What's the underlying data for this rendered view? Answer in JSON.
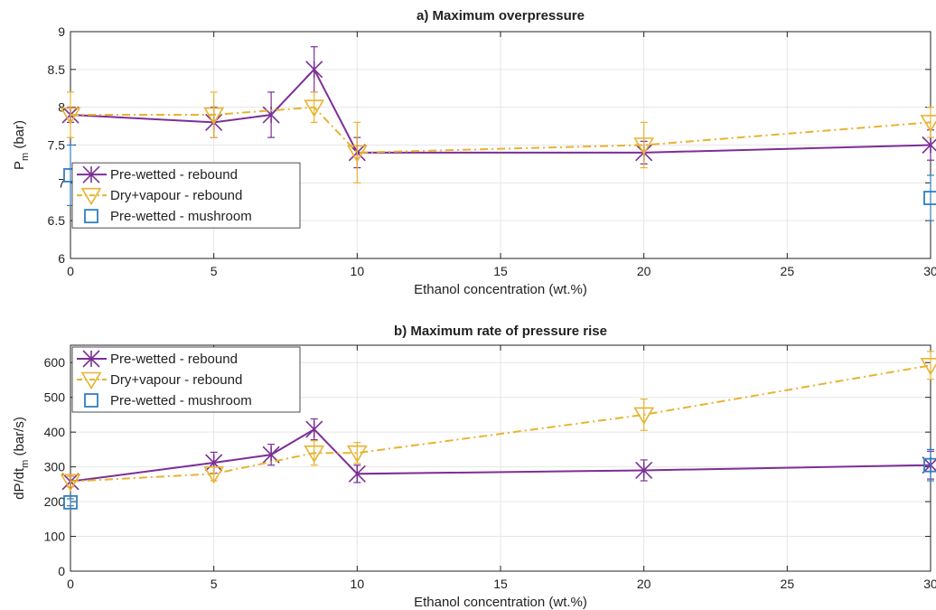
{
  "colors": {
    "prewetted_rebound": "#7b2f96",
    "dry_vapour": "#e8b330",
    "mushroom": "#2f7fc1",
    "axis": "#222222",
    "grid": "#e6e6e6"
  },
  "chart_data": [
    {
      "type": "line",
      "title": "a) Maximum overpressure",
      "xlabel": "Ethanol concentration (wt.%)",
      "ylabel": "P",
      "ylabel_sub": "m",
      "ylabel_unit": " (bar)",
      "xlim": [
        0,
        30
      ],
      "ylim": [
        6,
        9
      ],
      "xticks": [
        0,
        5,
        10,
        15,
        20,
        25,
        30
      ],
      "xtick_labels": [
        "0",
        "5",
        "10",
        "15",
        "20",
        "25",
        "30"
      ],
      "yticks": [
        6,
        6.5,
        7,
        7.5,
        8,
        8.5,
        9
      ],
      "ytick_labels": [
        "6",
        "6.5",
        "7",
        "7.5",
        "8",
        "8.5",
        "9"
      ],
      "legend_position": "bottom-left",
      "series": [
        {
          "name": "Pre-wetted - rebound",
          "marker": "x",
          "line": "solid",
          "color_key": "prewetted_rebound",
          "x": [
            0,
            5,
            7,
            8.5,
            10,
            20,
            30
          ],
          "y": [
            7.9,
            7.8,
            7.9,
            8.5,
            7.4,
            7.4,
            7.5
          ],
          "err": [
            0.1,
            0.2,
            0.3,
            0.3,
            0.2,
            0.15,
            0.2
          ]
        },
        {
          "name": "Dry+vapour - rebound",
          "marker": "triangle-down",
          "line": "dashdot",
          "color_key": "dry_vapour",
          "x": [
            0,
            5,
            8.5,
            10,
            20,
            30
          ],
          "y": [
            7.9,
            7.9,
            8.0,
            7.4,
            7.5,
            7.8
          ],
          "err": [
            0.3,
            0.3,
            0.2,
            0.4,
            0.3,
            0.2
          ]
        },
        {
          "name": "Pre-wetted - mushroom",
          "marker": "square",
          "line": "none",
          "color_key": "mushroom",
          "x": [
            0,
            30
          ],
          "y": [
            7.1,
            6.8
          ],
          "err": [
            0.4,
            0.3
          ]
        }
      ]
    },
    {
      "type": "line",
      "title": "b) Maximum rate of pressure rise",
      "xlabel": "Ethanol concentration (wt.%)",
      "ylabel": "dP/dt",
      "ylabel_sub": "m",
      "ylabel_unit": " (bar/s)",
      "xlim": [
        0,
        30
      ],
      "ylim": [
        0,
        650
      ],
      "xticks": [
        0,
        5,
        10,
        15,
        20,
        25,
        30
      ],
      "xtick_labels": [
        "0",
        "5",
        "10",
        "15",
        "20",
        "25",
        "30"
      ],
      "yticks": [
        0,
        100,
        200,
        300,
        400,
        500,
        600
      ],
      "ytick_labels": [
        "0",
        "100",
        "200",
        "300",
        "400",
        "500",
        "600"
      ],
      "legend_position": "top-left",
      "series": [
        {
          "name": "Pre-wetted - rebound",
          "marker": "x",
          "line": "solid",
          "color_key": "prewetted_rebound",
          "x": [
            0,
            5,
            7,
            8.5,
            10,
            20,
            30
          ],
          "y": [
            258,
            312,
            335,
            408,
            280,
            290,
            305
          ],
          "err": [
            15,
            30,
            30,
            30,
            25,
            30,
            40
          ]
        },
        {
          "name": "Dry+vapour - rebound",
          "marker": "triangle-down",
          "line": "dashdot",
          "color_key": "dry_vapour",
          "x": [
            0,
            5,
            8.5,
            10,
            20,
            30
          ],
          "y": [
            258,
            280,
            340,
            340,
            450,
            592
          ],
          "err": [
            15,
            20,
            35,
            30,
            45,
            40
          ]
        },
        {
          "name": "Pre-wetted - mushroom",
          "marker": "square",
          "line": "none",
          "color_key": "mushroom",
          "x": [
            0,
            30
          ],
          "y": [
            198,
            305
          ],
          "err": [
            10,
            45
          ]
        }
      ]
    }
  ]
}
